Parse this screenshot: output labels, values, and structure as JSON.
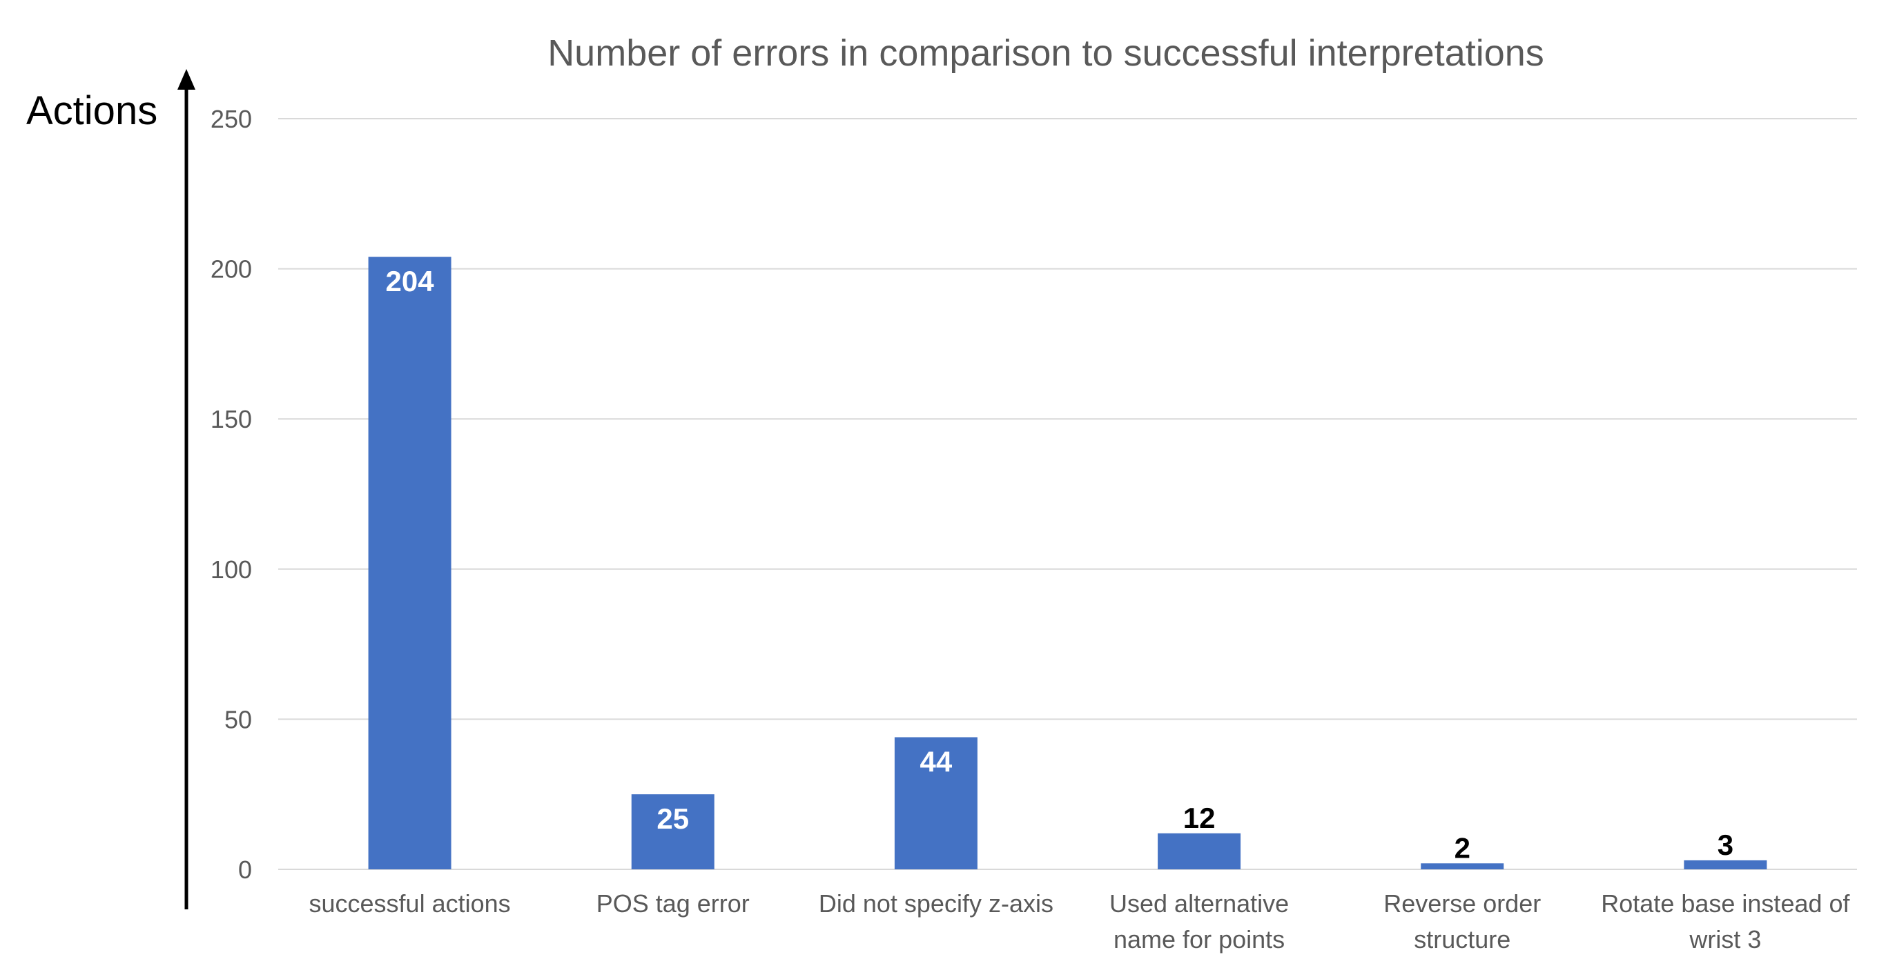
{
  "chart_data": {
    "type": "bar",
    "title": "Number of errors in comparison to successful interpretations",
    "ylabel": "Actions",
    "xlabel": "",
    "categories": [
      [
        "successful actions"
      ],
      [
        "POS tag error"
      ],
      [
        "Did not specify z-axis"
      ],
      [
        "Used alternative",
        "name for points"
      ],
      [
        "Reverse order",
        "structure"
      ],
      [
        "Rotate base instead of",
        "wrist 3"
      ]
    ],
    "values": [
      204,
      25,
      44,
      12,
      2,
      3
    ],
    "data_labels": [
      "204",
      "25",
      "44",
      "12",
      "2",
      "3"
    ],
    "ylim": [
      0,
      250
    ],
    "yticks": [
      0,
      50,
      100,
      150,
      200,
      250
    ],
    "ytick_labels": [
      "0",
      "50",
      "100",
      "150",
      "200",
      "250"
    ],
    "grid": true,
    "legend": "none",
    "colors": {
      "bar": "#4472C4",
      "label_inside": "#FFFFFF",
      "label_outside": "#000000",
      "grid": "#D9D9D9",
      "text": "#595959",
      "axis_arrow": "#000000"
    }
  }
}
